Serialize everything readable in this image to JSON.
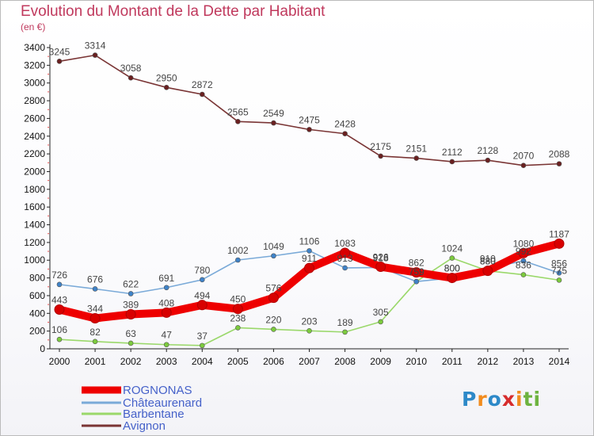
{
  "title": "Evolution du Montant de la Dette par Habitant",
  "unit": "(en €)",
  "logo": {
    "letters": [
      "P",
      "r",
      "o",
      "x",
      "i",
      "t",
      "i"
    ],
    "colors": [
      "#2d89c8",
      "#f28c1e",
      "#2d89c8",
      "#d62c2c",
      "#f28c1e",
      "#6db33f",
      "#6db33f"
    ]
  },
  "chart_data": {
    "type": "line",
    "x": [
      "2000",
      "2001",
      "2002",
      "2003",
      "2004",
      "2005",
      "2006",
      "2007",
      "2008",
      "2009",
      "2010",
      "2011",
      "2012",
      "2013",
      "2014"
    ],
    "ylim": [
      0,
      3400
    ],
    "yticks": [
      0,
      200,
      400,
      600,
      800,
      1000,
      1200,
      1400,
      1600,
      1800,
      2000,
      2200,
      2400,
      2600,
      2800,
      3000,
      3200,
      3400
    ],
    "series": [
      {
        "name": "ROGNONAS",
        "color": "#ee0000",
        "marker": "#d80000",
        "values": [
          443,
          344,
          389,
          408,
          494,
          450,
          576,
          911,
          1083,
          926,
          862,
          800,
          880,
          1080,
          1187
        ],
        "labels": [
          "443",
          "344",
          "389",
          "408",
          "494",
          "450",
          "576",
          "911",
          "1083",
          "926",
          "862",
          "800",
          "880",
          "1080",
          "1187"
        ]
      },
      {
        "name": "Châteaurenard",
        "color": "#7aaad8",
        "marker": "#3f83c9",
        "values": [
          726,
          676,
          622,
          691,
          780,
          1002,
          1049,
          1106,
          913,
          918,
          759,
          800,
          910,
          992,
          856
        ],
        "labels": [
          "726",
          "676",
          "622",
          "691",
          "780",
          "1002",
          "1049",
          "1106",
          "913",
          "918",
          "759",
          "800",
          "910",
          "992",
          "856"
        ]
      },
      {
        "name": "Barbentane",
        "color": "#9ad86a",
        "marker": "#7ccb3d",
        "values": [
          106,
          82,
          63,
          47,
          37,
          238,
          220,
          203,
          189,
          305,
          759,
          1024,
          880,
          836,
          775
        ],
        "labels": [
          "106",
          "82",
          "63",
          "47",
          "37",
          "238",
          "220",
          "203",
          "189",
          "305",
          "759",
          "1024",
          "880",
          "836",
          "775"
        ]
      },
      {
        "name": "Avignon",
        "color": "#7a3535",
        "marker": "#6a2020",
        "values": [
          3245,
          3314,
          3058,
          2950,
          2872,
          2565,
          2549,
          2475,
          2428,
          2175,
          2151,
          2112,
          2128,
          2070,
          2088
        ],
        "labels": [
          "3245",
          "3314",
          "3058",
          "2950",
          "2872",
          "2565",
          "2549",
          "2475",
          "2428",
          "2175",
          "2151",
          "2112",
          "2128",
          "2070",
          "2088"
        ]
      }
    ]
  }
}
